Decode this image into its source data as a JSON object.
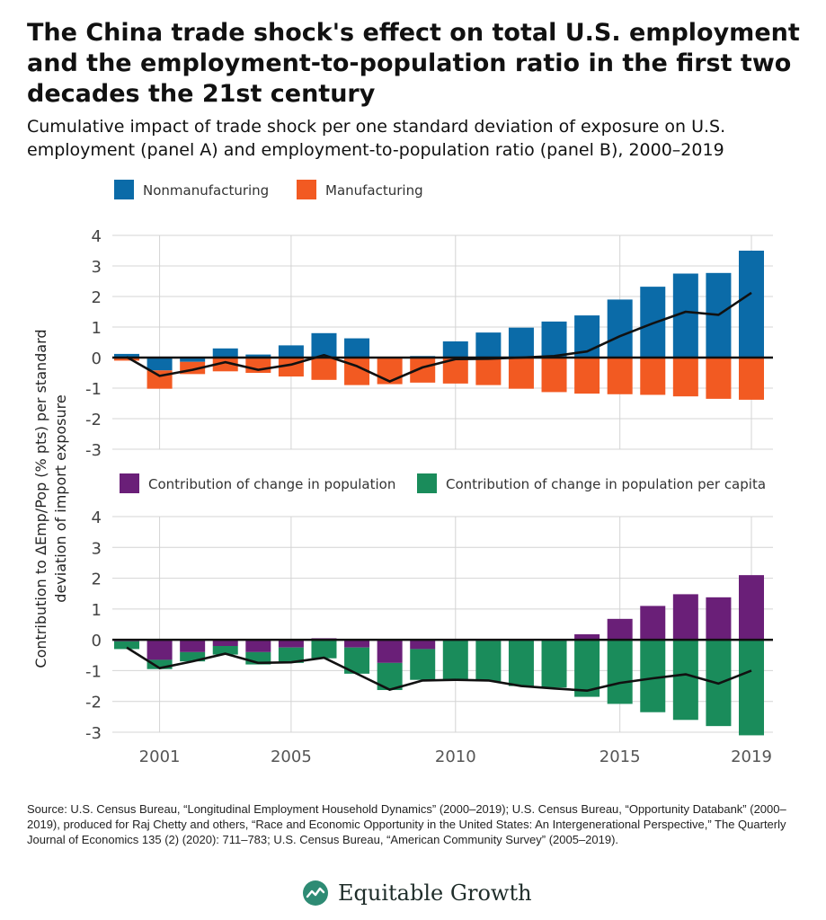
{
  "header": {
    "title": "The China trade shock's effect on total U.S. employment and the employment-to-population ratio in the first two decades the 21st century",
    "subtitle": "Cumulative impact of trade shock per one standard deviation of exposure on U.S. employment (panel A) and employment-to-population ratio (panel B), 2000–2019"
  },
  "colors": {
    "nonmanufacturing": "#0b6ba8",
    "manufacturing": "#f25a22",
    "population": "#6a1f78",
    "per_capita": "#1a8c5b",
    "line": "#111111",
    "grid": "#d4d4d4"
  },
  "chart_data": [
    {
      "panel": "A",
      "type": "bar",
      "stacked": true,
      "x": [
        2000,
        2001,
        2002,
        2003,
        2004,
        2005,
        2006,
        2007,
        2008,
        2009,
        2010,
        2011,
        2012,
        2013,
        2014,
        2015,
        2016,
        2017,
        2018,
        2019
      ],
      "ylim": [
        -3,
        4
      ],
      "yticks": [
        4,
        3,
        2,
        1,
        0,
        -1,
        -2,
        -3
      ],
      "ytick_labels": [
        "4",
        "3",
        "2",
        "1",
        "0",
        "-1",
        "-2",
        "-3"
      ],
      "legend": [
        "Nonmanufacturing",
        "Manufacturing"
      ],
      "series": [
        {
          "name": "Nonmanufacturing",
          "color_key": "nonmanufacturing",
          "values": [
            0.12,
            -0.42,
            -0.14,
            0.3,
            0.1,
            0.4,
            0.8,
            0.63,
            -0.02,
            0.05,
            0.53,
            0.82,
            0.98,
            1.18,
            1.38,
            1.9,
            2.32,
            2.75,
            2.77,
            3.5
          ]
        },
        {
          "name": "Manufacturing",
          "color_key": "manufacturing",
          "values": [
            -0.1,
            -0.6,
            -0.4,
            -0.45,
            -0.5,
            -0.62,
            -0.73,
            -0.9,
            -0.85,
            -0.82,
            -0.85,
            -0.9,
            -1.02,
            -1.13,
            -1.18,
            -1.2,
            -1.22,
            -1.27,
            -1.35,
            -1.38
          ]
        },
        {
          "name": "Total",
          "type": "line",
          "color_key": "line",
          "values": [
            0.02,
            -0.6,
            -0.4,
            -0.15,
            -0.4,
            -0.23,
            0.08,
            -0.28,
            -0.78,
            -0.32,
            -0.05,
            -0.04,
            0.0,
            0.05,
            0.2,
            0.7,
            1.12,
            1.5,
            1.4,
            2.12
          ]
        }
      ]
    },
    {
      "panel": "B",
      "type": "bar",
      "stacked": true,
      "x": [
        2000,
        2001,
        2002,
        2003,
        2004,
        2005,
        2006,
        2007,
        2008,
        2009,
        2010,
        2011,
        2012,
        2013,
        2014,
        2015,
        2016,
        2017,
        2018,
        2019
      ],
      "ylim": [
        -3,
        4
      ],
      "yticks": [
        4,
        3,
        2,
        1,
        0,
        -1,
        -2,
        -3
      ],
      "ytick_labels": [
        "4",
        "3",
        "2",
        "1",
        "0",
        "-1",
        "-2",
        "-3"
      ],
      "legend": [
        "Contribution of change in population",
        "Contribution of change in population per capita"
      ],
      "series": [
        {
          "name": "Contribution of change in population",
          "color_key": "population",
          "values": [
            -0.05,
            -0.65,
            -0.4,
            -0.2,
            -0.4,
            -0.25,
            0.05,
            -0.25,
            -0.75,
            -0.3,
            -0.02,
            -0.03,
            -0.02,
            0.02,
            0.18,
            0.68,
            1.1,
            1.48,
            1.38,
            2.1
          ]
        },
        {
          "name": "Contribution of change in population per capita",
          "color_key": "per_capita",
          "values": [
            -0.25,
            -0.3,
            -0.3,
            -0.28,
            -0.4,
            -0.5,
            -0.6,
            -0.85,
            -0.88,
            -1.0,
            -1.3,
            -1.32,
            -1.48,
            -1.55,
            -1.85,
            -2.08,
            -2.35,
            -2.6,
            -2.8,
            -3.1
          ]
        },
        {
          "name": "Total",
          "type": "line",
          "color_key": "line",
          "values": [
            -0.25,
            -0.92,
            -0.7,
            -0.45,
            -0.75,
            -0.73,
            -0.58,
            -1.1,
            -1.62,
            -1.32,
            -1.3,
            -1.32,
            -1.5,
            -1.58,
            -1.65,
            -1.4,
            -1.25,
            -1.12,
            -1.42,
            -1.0
          ]
        }
      ]
    }
  ],
  "axes": {
    "ylabel": "Contribution to ΔEmp/Pop (% pts) per standard deviation of import exposure",
    "ylabel_line1": "Contribution to ΔEmp/Pop (% pts) per standard",
    "ylabel_line2": "deviation of import exposure",
    "xtick_years": [
      2001,
      2005,
      2010,
      2015,
      2019
    ],
    "xtick_labels": [
      "2001",
      "2005",
      "2010",
      "2015",
      "2019"
    ]
  },
  "source": "Source: U.S. Census Bureau, “Longitudinal Employment Household Dynamics” (2000–2019); U.S. Census Bureau, “Opportunity Databank” (2000–2019), produced for Raj Chetty and others, “Race and Economic Opportunity in the United States: An Intergenerational Perspective,” The Quarterly Journal of Economics 135 (2) (2020): 711–783; U.S. Census Bureau, “American Community Survey” (2005–2019).",
  "brand": {
    "name": "Equitable Growth",
    "icon": "equitable-growth-logo-icon"
  }
}
